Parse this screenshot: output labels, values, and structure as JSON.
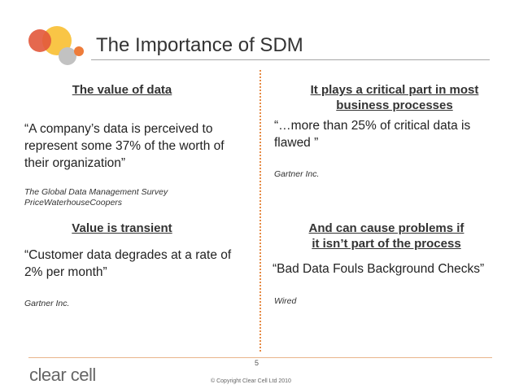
{
  "slide": {
    "title": "The Importance of SDM",
    "page_number": "5",
    "brand": "clear cell",
    "copyright": "© Copyright Clear Cell Ltd 2010"
  },
  "top_left": {
    "heading": "The value of data",
    "quote_lines": [
      "“A company’s data is perceived to",
      "represent some 37% of the worth of",
      "their organization”"
    ],
    "source_lines": [
      "The Global Data Management Survey",
      "PriceWaterhouseCoopers"
    ]
  },
  "top_right": {
    "heading_lines": [
      "It plays a critical part in most",
      "business processes"
    ],
    "quote_lines": [
      "“…more than 25% of critical data is",
      "flawed ”"
    ],
    "source": "Gartner Inc."
  },
  "bottom_left": {
    "heading": "Value is transient",
    "quote_lines": [
      "“Customer data degrades at a rate of",
      "2% per month”"
    ],
    "source": "Gartner Inc."
  },
  "bottom_right": {
    "heading_lines": [
      "And can cause problems if",
      "it isn’t part of the process"
    ],
    "quote": "“Bad Data Fouls Background Checks”",
    "source": "Wired"
  }
}
